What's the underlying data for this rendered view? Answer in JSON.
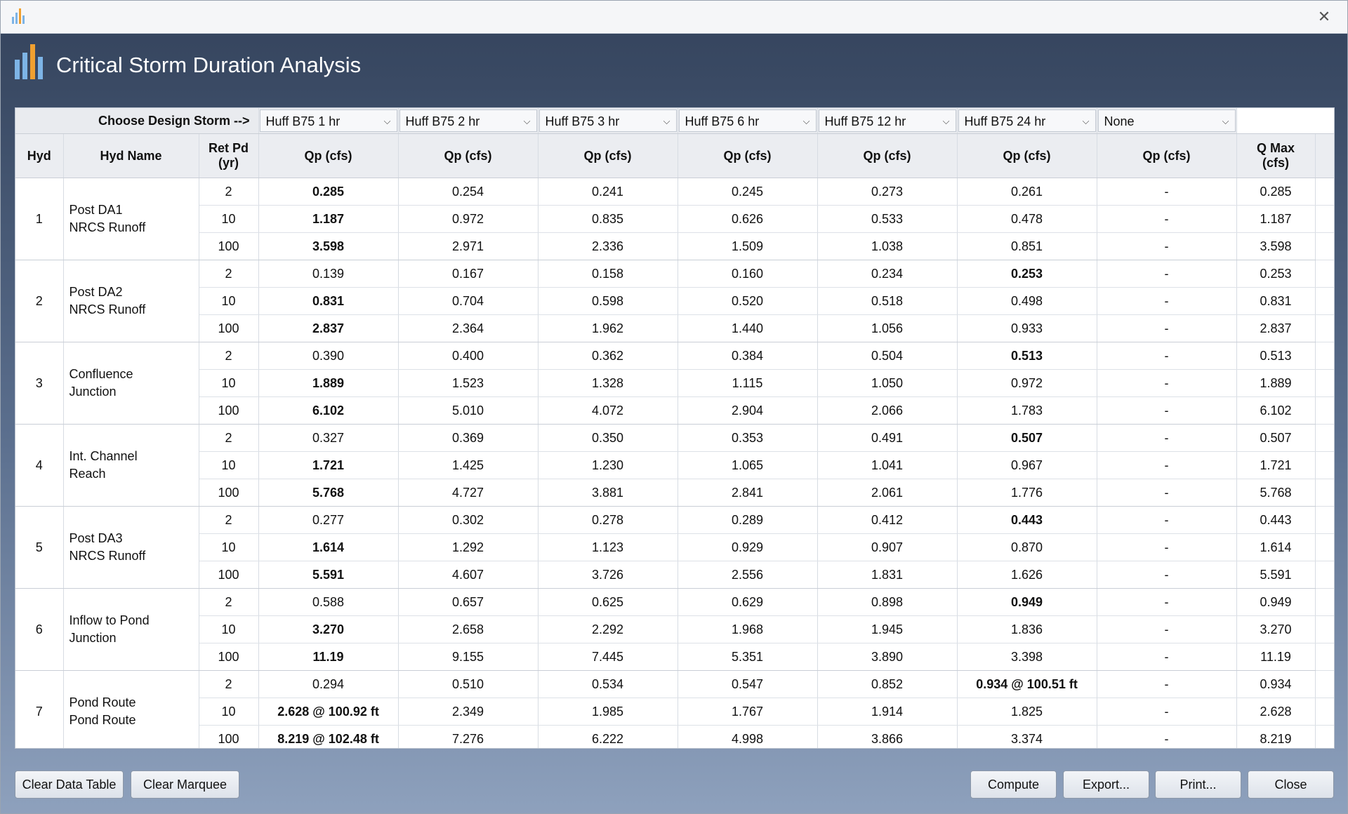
{
  "window": {
    "close_glyph": "✕"
  },
  "header": {
    "title": "Critical Storm Duration Analysis"
  },
  "colors": {
    "header_bg": "#34435c",
    "bar_blue": "#7db4e6",
    "bar_orange": "#f0a030"
  },
  "storm_row": {
    "label": "Choose Design Storm -->",
    "storms": [
      "Huff B75  1 hr",
      "Huff B75  2 hr",
      "Huff B75  3 hr",
      "Huff B75  6 hr",
      "Huff B75  12 hr",
      "Huff B75  24 hr",
      "None"
    ]
  },
  "columns": {
    "hyd": "Hyd",
    "hyd_name": "Hyd Name",
    "ret_pd_line1": "Ret Pd",
    "ret_pd_line2": "(yr)",
    "qp": "Qp (cfs)",
    "qmax_line1": "Q Max",
    "qmax_line2": "(cfs)"
  },
  "hydrographs": [
    {
      "hyd": "1",
      "name1": "Post DA1",
      "name2": "NRCS Runoff",
      "rows": [
        {
          "ret": "2",
          "vals": [
            "0.285",
            "0.254",
            "0.241",
            "0.245",
            "0.273",
            "0.261",
            "-"
          ],
          "bold": 0,
          "qmax": "0.285"
        },
        {
          "ret": "10",
          "vals": [
            "1.187",
            "0.972",
            "0.835",
            "0.626",
            "0.533",
            "0.478",
            "-"
          ],
          "bold": 0,
          "qmax": "1.187"
        },
        {
          "ret": "100",
          "vals": [
            "3.598",
            "2.971",
            "2.336",
            "1.509",
            "1.038",
            "0.851",
            "-"
          ],
          "bold": 0,
          "qmax": "3.598"
        }
      ]
    },
    {
      "hyd": "2",
      "name1": "Post DA2",
      "name2": "NRCS Runoff",
      "rows": [
        {
          "ret": "2",
          "vals": [
            "0.139",
            "0.167",
            "0.158",
            "0.160",
            "0.234",
            "0.253",
            "-"
          ],
          "bold": 5,
          "qmax": "0.253"
        },
        {
          "ret": "10",
          "vals": [
            "0.831",
            "0.704",
            "0.598",
            "0.520",
            "0.518",
            "0.498",
            "-"
          ],
          "bold": 0,
          "qmax": "0.831"
        },
        {
          "ret": "100",
          "vals": [
            "2.837",
            "2.364",
            "1.962",
            "1.440",
            "1.056",
            "0.933",
            "-"
          ],
          "bold": 0,
          "qmax": "2.837"
        }
      ]
    },
    {
      "hyd": "3",
      "name1": "Confluence",
      "name2": "Junction",
      "rows": [
        {
          "ret": "2",
          "vals": [
            "0.390",
            "0.400",
            "0.362",
            "0.384",
            "0.504",
            "0.513",
            "-"
          ],
          "bold": 5,
          "qmax": "0.513"
        },
        {
          "ret": "10",
          "vals": [
            "1.889",
            "1.523",
            "1.328",
            "1.115",
            "1.050",
            "0.972",
            "-"
          ],
          "bold": 0,
          "qmax": "1.889"
        },
        {
          "ret": "100",
          "vals": [
            "6.102",
            "5.010",
            "4.072",
            "2.904",
            "2.066",
            "1.783",
            "-"
          ],
          "bold": 0,
          "qmax": "6.102"
        }
      ]
    },
    {
      "hyd": "4",
      "name1": "Int. Channel",
      "name2": "Reach",
      "rows": [
        {
          "ret": "2",
          "vals": [
            "0.327",
            "0.369",
            "0.350",
            "0.353",
            "0.491",
            "0.507",
            "-"
          ],
          "bold": 5,
          "qmax": "0.507"
        },
        {
          "ret": "10",
          "vals": [
            "1.721",
            "1.425",
            "1.230",
            "1.065",
            "1.041",
            "0.967",
            "-"
          ],
          "bold": 0,
          "qmax": "1.721"
        },
        {
          "ret": "100",
          "vals": [
            "5.768",
            "4.727",
            "3.881",
            "2.841",
            "2.061",
            "1.776",
            "-"
          ],
          "bold": 0,
          "qmax": "5.768"
        }
      ]
    },
    {
      "hyd": "5",
      "name1": "Post DA3",
      "name2": "NRCS Runoff",
      "rows": [
        {
          "ret": "2",
          "vals": [
            "0.277",
            "0.302",
            "0.278",
            "0.289",
            "0.412",
            "0.443",
            "-"
          ],
          "bold": 5,
          "qmax": "0.443"
        },
        {
          "ret": "10",
          "vals": [
            "1.614",
            "1.292",
            "1.123",
            "0.929",
            "0.907",
            "0.870",
            "-"
          ],
          "bold": 0,
          "qmax": "1.614"
        },
        {
          "ret": "100",
          "vals": [
            "5.591",
            "4.607",
            "3.726",
            "2.556",
            "1.831",
            "1.626",
            "-"
          ],
          "bold": 0,
          "qmax": "5.591"
        }
      ]
    },
    {
      "hyd": "6",
      "name1": "Inflow to Pond",
      "name2": "Junction",
      "rows": [
        {
          "ret": "2",
          "vals": [
            "0.588",
            "0.657",
            "0.625",
            "0.629",
            "0.898",
            "0.949",
            "-"
          ],
          "bold": 5,
          "qmax": "0.949"
        },
        {
          "ret": "10",
          "vals": [
            "3.270",
            "2.658",
            "2.292",
            "1.968",
            "1.945",
            "1.836",
            "-"
          ],
          "bold": 0,
          "qmax": "3.270"
        },
        {
          "ret": "100",
          "vals": [
            "11.19",
            "9.155",
            "7.445",
            "5.351",
            "3.890",
            "3.398",
            "-"
          ],
          "bold": 0,
          "qmax": "11.19"
        }
      ]
    },
    {
      "hyd": "7",
      "name1": "Pond Route",
      "name2": "Pond Route",
      "rows": [
        {
          "ret": "2",
          "vals": [
            "0.294",
            "0.510",
            "0.534",
            "0.547",
            "0.852",
            "0.934 @ 100.51 ft",
            "-"
          ],
          "bold": 5,
          "qmax": "0.934"
        },
        {
          "ret": "10",
          "vals": [
            "2.628 @ 100.92 ft",
            "2.349",
            "1.985",
            "1.767",
            "1.914",
            "1.825",
            "-"
          ],
          "bold": 0,
          "qmax": "2.628"
        },
        {
          "ret": "100",
          "vals": [
            "8.219 @ 102.48 ft",
            "7.276",
            "6.222",
            "4.998",
            "3.866",
            "3.374",
            "-"
          ],
          "bold": 0,
          "qmax": "8.219"
        }
      ]
    }
  ],
  "buttons": {
    "clear_data_table": "Clear Data Table",
    "clear_marquee": "Clear Marquee",
    "compute": "Compute",
    "export": "Export...",
    "print": "Print...",
    "close": "Close"
  }
}
